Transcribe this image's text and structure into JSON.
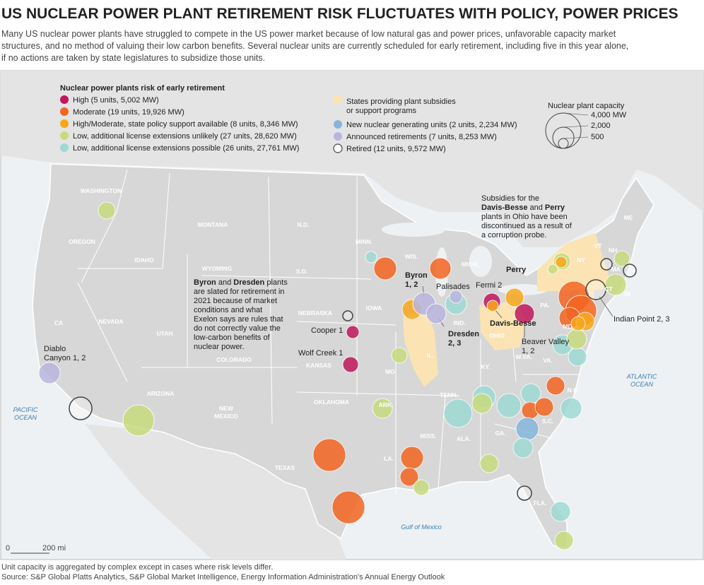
{
  "header": {
    "title": "US NUCLEAR POWER PLANT RETIREMENT RISK FLUCTUATES WITH POLICY, POWER PRICES",
    "subtitle_lines": [
      "Many US nuclear power plants have struggled to compete in the US power market because of low natural gas and power prices, unfavorable capacity market",
      "structures, and no method of valuing their low carbon benefits. Several nuclear units are currently scheduled for early retirement, including five in this year alone,",
      "if no actions are taken by state legislatures to subsidize those units."
    ]
  },
  "legend": {
    "title": "Nuclear power plants risk of early retirement",
    "items": [
      {
        "label": "High (5 units, 5,002 MW)",
        "color": "#c0175d"
      },
      {
        "label": "Moderate (19 units, 19,926 MW)",
        "color": "#f26522"
      },
      {
        "label": "High/Moderate, state policy support available (8 units, 8,346 MW)",
        "color": "#f7a81b"
      },
      {
        "label": "Low, additional license extensions unlikely (27 units, 28,620 MW)",
        "color": "#c7da7e"
      },
      {
        "label": "Low, additional license extensions possible (26 units, 27,761 MW)",
        "color": "#9fd9d3"
      },
      {
        "label": "New nuclear generating units (2 units, 2,234 MW)",
        "color": "#85b5dc"
      },
      {
        "label": "Announced retirements (7 units, 8,253 MW)",
        "color": "#bab5de"
      },
      {
        "label": "Retired (12 units, 9,572 MW)",
        "color": "#ffffff"
      }
    ],
    "subsidy": {
      "lines": [
        "States providing plant subsidies",
        "or support programs"
      ],
      "color": "#fbe3b3"
    },
    "capacity": {
      "title": "Nuclear plant capacity",
      "labels": [
        "4,000 MW",
        "2,000",
        "500"
      ]
    }
  },
  "map": {
    "state_labels": [
      "WASHINGTON",
      "OREGON",
      "IDAHO",
      "MONTANA",
      "WYOMING",
      "N.D.",
      "S.D.",
      "MINN.",
      "WIS.",
      "MICH.",
      "NEBRASKA",
      "IOWA",
      "CA",
      "NEVADA",
      "UTAH",
      "COLORADO",
      "KANSAS",
      "MO.",
      "IL.",
      "IND.",
      "OHIO",
      "PA.",
      "NY",
      "ME",
      "VT",
      "NH",
      "MA",
      "CT",
      "RI",
      "MD",
      "W.VA.",
      "VA.",
      "KY.",
      "TENN.",
      "N.C.",
      "S.C.",
      "ARK.",
      "OKLAHOMA",
      "TEXAS",
      "NEW",
      "MEXICO",
      "ARIZONA",
      "MISS.",
      "ALA.",
      "GA.",
      "LA.",
      "FLA."
    ],
    "ocean_labels": [
      [
        "PACIFIC",
        "OCEAN"
      ],
      [
        "ATLANTIC",
        "OCEAN"
      ],
      [
        "Gulf of Mexico"
      ]
    ],
    "annotations": [
      {
        "lines": [
          [
            {
              "text": "Byron",
              "bold": true
            }
          ],
          [
            {
              "text": "1, 2",
              "bold": true
            }
          ]
        ]
      },
      {
        "lines": [
          [
            {
              "text": "Palisades"
            }
          ]
        ]
      },
      {
        "lines": [
          [
            {
              "text": "Fermi 2"
            }
          ]
        ]
      },
      {
        "lines": [
          [
            {
              "text": "Perry",
              "bold": true
            }
          ]
        ]
      },
      {
        "lines": [
          [
            {
              "text": "Davis-Besse",
              "bold": true
            }
          ]
        ]
      },
      {
        "lines": [
          [
            {
              "text": "Beaver Valley"
            }
          ],
          [
            {
              "text": "1, 2"
            }
          ]
        ]
      },
      {
        "lines": [
          [
            {
              "text": "Indian Point 2, 3"
            }
          ]
        ]
      },
      {
        "lines": [
          [
            {
              "text": "Dresden",
              "bold": true
            }
          ],
          [
            {
              "text": "2, 3",
              "bold": true
            }
          ]
        ]
      },
      {
        "lines": [
          [
            {
              "text": "Cooper 1"
            }
          ]
        ]
      },
      {
        "lines": [
          [
            {
              "text": "Wolf Creek 1"
            }
          ]
        ]
      },
      {
        "lines": [
          [
            {
              "text": "Diablo"
            }
          ],
          [
            {
              "text": "Canyon 1, 2"
            }
          ]
        ]
      },
      {
        "lines": [
          [
            {
              "text": "Subsidies for the"
            }
          ],
          [
            {
              "text": "Davis-Besse",
              "bold": true
            },
            {
              "text": " and "
            },
            {
              "text": "Perry",
              "bold": true
            }
          ],
          [
            {
              "text": "plants in Ohio have been"
            }
          ],
          [
            {
              "text": "discontinued as a result of"
            }
          ],
          [
            {
              "text": "a corruption probe."
            }
          ]
        ]
      },
      {
        "lines": [
          [
            {
              "text": "Byron",
              "bold": true
            },
            {
              "text": " and "
            },
            {
              "text": "Dresden",
              "bold": true
            },
            {
              "text": " plants"
            }
          ],
          [
            {
              "text": "are slated for retirement in"
            }
          ],
          [
            {
              "text": "2021 because of market"
            }
          ],
          [
            {
              "text": "conditions and what"
            }
          ],
          [
            {
              "text": "Exelon says are rules that"
            }
          ],
          [
            {
              "text": "do not correctly value the"
            }
          ],
          [
            {
              "text": "low-carbon benefits of"
            }
          ],
          [
            {
              "text": "nuclear power."
            }
          ]
        ]
      }
    ],
    "scale": [
      "0",
      "200 mi"
    ]
  },
  "footer": {
    "note": "Unit capacity is aggregated by complex except in cases where risk levels differ.",
    "source": "Source: S&P Global Platts Analytics, S&P Global Market Intelligence, Energy Information Administration's Annual Energy Outlook"
  }
}
